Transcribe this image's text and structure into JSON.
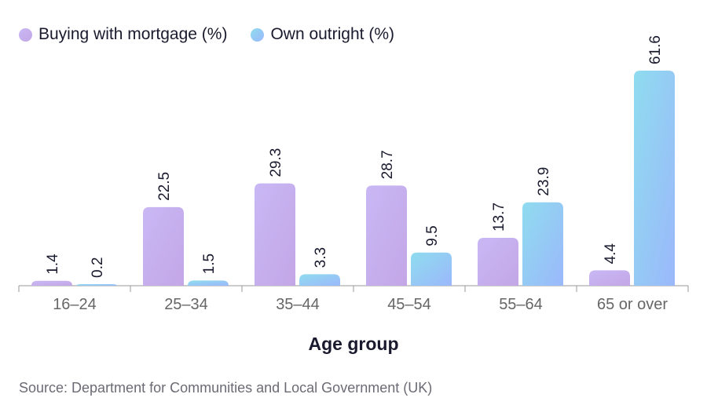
{
  "chart_data": {
    "type": "bar",
    "xlabel": "Age group",
    "categories": [
      "16–24",
      "25–34",
      "35–44",
      "45–54",
      "55–64",
      "65 or over"
    ],
    "series": [
      {
        "name": "Buying with mortgage (%)",
        "values": [
          1.4,
          22.5,
          29.3,
          28.7,
          13.7,
          4.4
        ],
        "colors": [
          "#c9b8f5",
          "#c3a6e6"
        ]
      },
      {
        "name": "Own outright (%)",
        "values": [
          0.2,
          1.5,
          3.3,
          9.5,
          23.9,
          61.6
        ],
        "colors": [
          "#8fdcef",
          "#9bb8fb"
        ]
      }
    ],
    "ylim": [
      0,
      62
    ],
    "grid": false,
    "legend": "top-left",
    "source": "Source: Department for Communities and Local Government (UK)"
  }
}
